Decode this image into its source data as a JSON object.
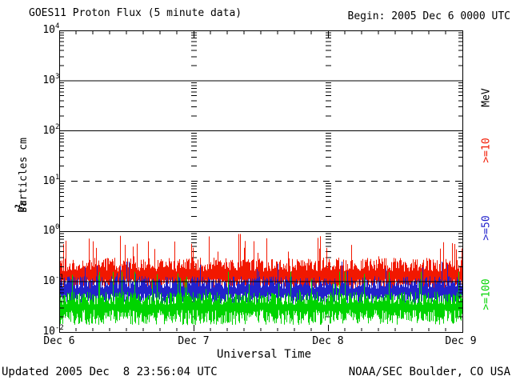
{
  "chart_data": {
    "type": "line",
    "title": "GOES11 Proton Flux (5 minute data)",
    "xlabel": "Universal Time",
    "ylabel_plain": "Particles cm^-2 s^-1 sr^-1",
    "ylabel_segments": [
      {
        "text": "Particles cm",
        "sup": false
      },
      {
        "text": "-2",
        "sup": true
      },
      {
        "text": "s",
        "sup": false
      },
      {
        "text": "-1",
        "sup": true
      },
      {
        "text": "sr",
        "sup": false
      },
      {
        "text": "-1",
        "sup": true
      }
    ],
    "annotations": {
      "begin": "Begin: 2005 Dec 6 0000 UTC",
      "updated": "Updated 2005 Dec  8 23:56:04 UTC",
      "source": "NOAA/SEC Boulder, CO USA"
    },
    "unit_label": "MeV",
    "x_ticks": [
      "Dec 6",
      "Dec 7",
      "Dec 8",
      "Dec 9"
    ],
    "x_days": 3,
    "minor_ticks_per_day": 8,
    "y_ticks": [
      {
        "base": "10",
        "exp": "4",
        "log": 4
      },
      {
        "base": "10",
        "exp": "3",
        "log": 3
      },
      {
        "base": "10",
        "exp": "2",
        "log": 2
      },
      {
        "base": "10",
        "exp": "1",
        "log": 1
      },
      {
        "base": "10",
        "exp": "0",
        "log": 0
      },
      {
        "base": "10",
        "exp": "-1",
        "log": -1
      },
      {
        "base": "10",
        "exp": "-2",
        "log": -2
      }
    ],
    "ylim_log10": [
      -2,
      4
    ],
    "grid": {
      "solid_log10": [
        3,
        2,
        0,
        -1
      ],
      "dashed_log10": [
        1
      ],
      "day_columns": true
    },
    "axis_color": "#000000",
    "background": "#ffffff",
    "legend_position": "right",
    "series": [
      {
        "label": ">=10",
        "unit": "MeV",
        "color": "#f21800",
        "baseline_log10": -0.82,
        "band_lo": [
          0.12,
          0.22
        ],
        "band_hi": [
          0.02,
          0.28
        ],
        "spike_prob": 0.07,
        "spike": [
          0.15,
          0.5
        ],
        "rare_spike": [
          0.01,
          0.4
        ],
        "floor_log10": -1.25,
        "ceil_log10": -0.05,
        "seed": 101,
        "typical_flux": 0.15
      },
      {
        "label": ">=50",
        "unit": "MeV",
        "color": "#2222cc",
        "baseline_log10": -1.16,
        "band_lo": [
          0.08,
          0.2
        ],
        "band_hi": [
          0.02,
          0.25
        ],
        "spike_prob": 0.05,
        "spike": [
          0.1,
          0.35
        ],
        "rare_spike": [
          0.004,
          0.2
        ],
        "floor_log10": -1.55,
        "ceil_log10": -0.6,
        "seed": 202,
        "typical_flux": 0.07
      },
      {
        "label": ">=100",
        "unit": "MeV",
        "color": "#00d400",
        "baseline_log10": -1.48,
        "band_lo": [
          0.08,
          0.3
        ],
        "band_hi": [
          0.02,
          0.26
        ],
        "spike_prob": 0.05,
        "spike": [
          0.1,
          0.45
        ],
        "rare_spike": [
          0.008,
          0.5
        ],
        "floor_log10": -1.97,
        "ceil_log10": -0.8,
        "seed": 303,
        "typical_flux": 0.03
      }
    ]
  }
}
